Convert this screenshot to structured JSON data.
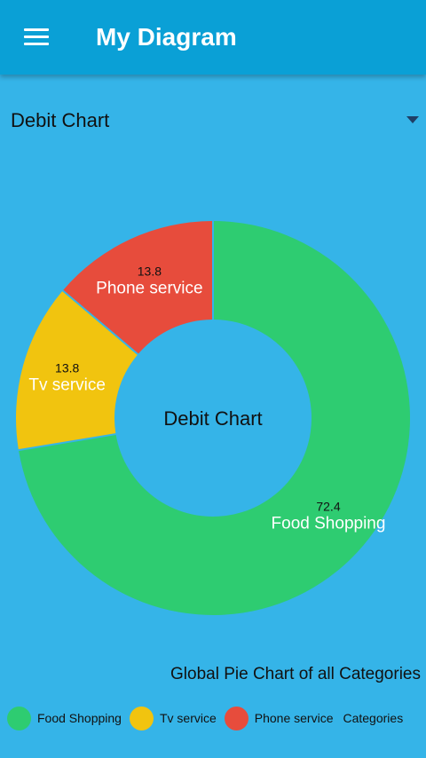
{
  "header": {
    "title": "My Diagram"
  },
  "selector": {
    "selected": "Debit Chart"
  },
  "chart_data": {
    "type": "pie",
    "style": "donut",
    "center_text": "Debit Chart",
    "description": "Global Pie Chart of all Categories",
    "legend_title": "Categories",
    "legend_position": "bottom",
    "slices": [
      {
        "label": "Food Shopping",
        "value": 72.4,
        "color": "#2ecc71"
      },
      {
        "label": "Tv service",
        "value": 13.8,
        "color": "#f1c40f"
      },
      {
        "label": "Phone service",
        "value": 13.8,
        "color": "#e74c3c"
      }
    ]
  }
}
